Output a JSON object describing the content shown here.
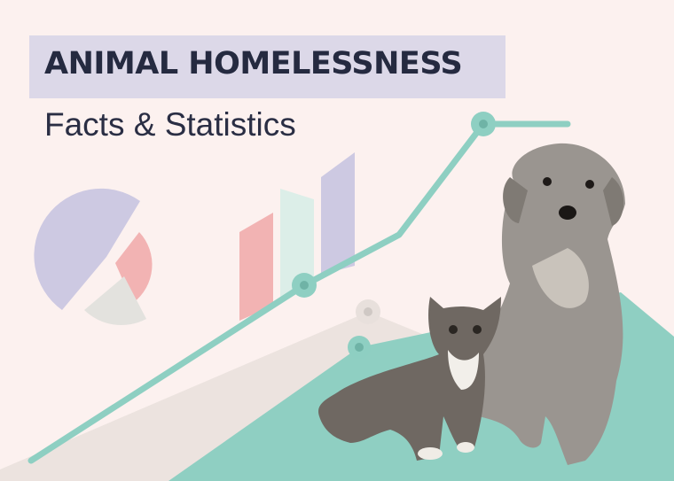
{
  "header": {
    "title": "ANIMAL HOMELESSNESS",
    "subtitle": "Facts & Statistics"
  },
  "colors": {
    "background": "#fcf1ef",
    "title_box": "#dcd8e8",
    "title_text": "#252a40",
    "accent_mint": "#8ecfc2",
    "pink": "#f2b3b3",
    "lavender": "#cdc9e2",
    "light_grey": "#e3e2de"
  },
  "illustration": {
    "elements": [
      "pie-chart-icon",
      "bar-chart-icon",
      "trend-line-icon",
      "dog-photo",
      "kitten-photo"
    ]
  }
}
